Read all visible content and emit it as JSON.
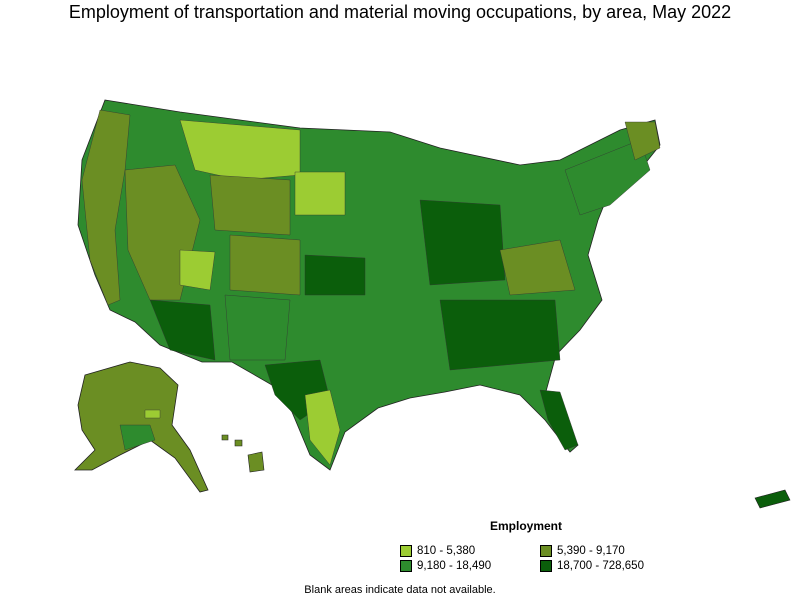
{
  "title": "Employment of transportation and material moving occupations, by area, May 2022",
  "legend": {
    "title": "Employment",
    "items": [
      {
        "label": "810 - 5,380",
        "color": "#9ccc33"
      },
      {
        "label": "5,390 - 9,170",
        "color": "#6b8e23"
      },
      {
        "label": "9,180 - 18,490",
        "color": "#2e8b2e"
      },
      {
        "label": "18,700 - 728,650",
        "color": "#0b5e0b"
      }
    ]
  },
  "note": "Blank areas indicate data not available."
}
